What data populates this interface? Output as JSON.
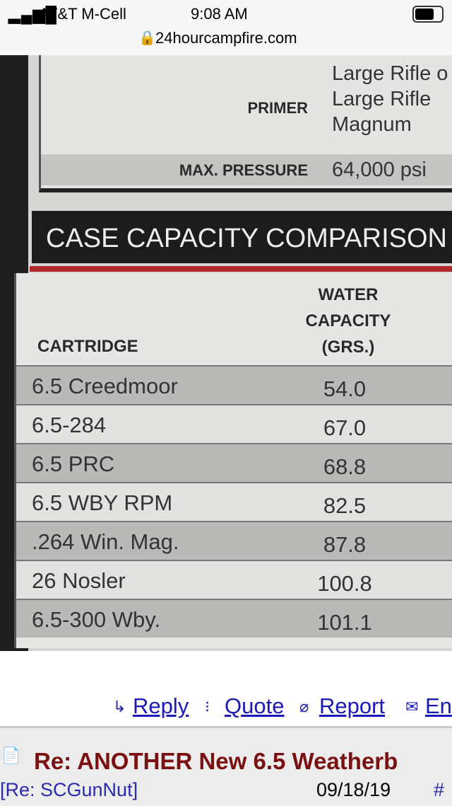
{
  "status_bar": {
    "carrier": "AT&T M-Cell",
    "time": "9:08 AM"
  },
  "address_bar": {
    "url": "24hourcampfire.com"
  },
  "photo": {
    "spec_table": {
      "rows": [
        {
          "label": "PRIMER",
          "value_lines": [
            "Large Rifle o",
            "Large Rifle",
            "Magnum"
          ]
        },
        {
          "label": "MAX. PRESSURE",
          "value_lines": [
            "64,000 psi"
          ]
        }
      ]
    },
    "capacity_table": {
      "title": "CASE CAPACITY COMPARISON",
      "header": {
        "cartridge": "CARTRIDGE",
        "capacity_lines": [
          "WATER",
          "CAPACITY",
          "(GRS.)"
        ]
      },
      "rows": [
        [
          "6.5 Creedmoor",
          "54.0"
        ],
        [
          "6.5-284",
          "67.0"
        ],
        [
          "6.5 PRC",
          "68.8"
        ],
        [
          "6.5 WBY RPM",
          "82.5"
        ],
        [
          ".264 Win. Mag.",
          "87.8"
        ],
        [
          "26 Nosler",
          "100.8"
        ],
        [
          "6.5-300 Wby.",
          "101.1"
        ]
      ]
    }
  },
  "post_actions": [
    "Reply",
    "Quote",
    "Report",
    "En"
  ],
  "post": {
    "title": "Re: ANOTHER New 6.5 Weatherb",
    "parent": "[Re: SCGunNut]",
    "date": "09/18/19",
    "anchor": "#"
  }
}
